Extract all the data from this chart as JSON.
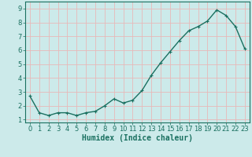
{
  "x": [
    0,
    1,
    2,
    3,
    4,
    5,
    6,
    7,
    8,
    9,
    10,
    11,
    12,
    13,
    14,
    15,
    16,
    17,
    18,
    19,
    20,
    21,
    22,
    23
  ],
  "y": [
    2.7,
    1.5,
    1.3,
    1.5,
    1.5,
    1.3,
    1.5,
    1.6,
    2.0,
    2.5,
    2.2,
    2.4,
    3.1,
    4.2,
    5.1,
    5.9,
    6.7,
    7.4,
    7.7,
    8.1,
    8.9,
    8.5,
    7.7,
    6.1
  ],
  "line_color": "#1a7060",
  "bg_color": "#cceaea",
  "grid_color_major": "#e8b8b8",
  "grid_color_minor": "#e8b8b8",
  "xlabel": "Humidex (Indice chaleur)",
  "xlim": [
    -0.5,
    23.5
  ],
  "ylim": [
    0.8,
    9.5
  ],
  "yticks": [
    1,
    2,
    3,
    4,
    5,
    6,
    7,
    8,
    9
  ],
  "xticks": [
    0,
    1,
    2,
    3,
    4,
    5,
    6,
    7,
    8,
    9,
    10,
    11,
    12,
    13,
    14,
    15,
    16,
    17,
    18,
    19,
    20,
    21,
    22,
    23
  ],
  "tick_color": "#1a7060",
  "label_fontsize": 7,
  "tick_fontsize": 6,
  "marker_size": 3.5,
  "line_width": 1.0
}
